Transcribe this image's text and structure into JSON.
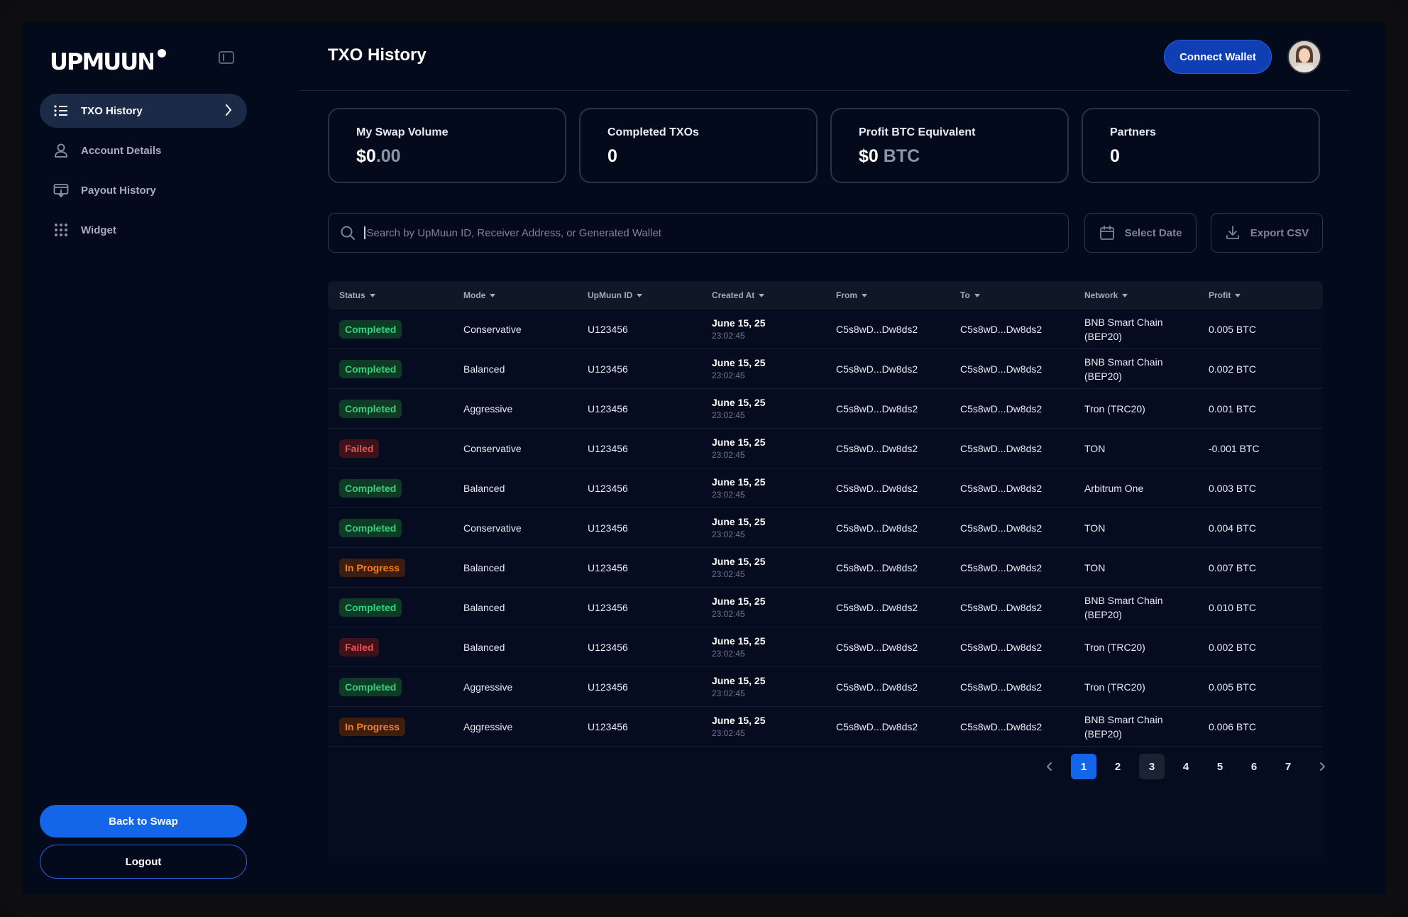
{
  "brand": {
    "logo_text": "UPMUUN"
  },
  "sidebar": {
    "items": [
      {
        "label": "TXO History",
        "icon": "list-icon",
        "active": true
      },
      {
        "label": "Account Details",
        "icon": "user-icon",
        "active": false
      },
      {
        "label": "Payout History",
        "icon": "payout-icon",
        "active": false
      },
      {
        "label": "Widget",
        "icon": "grid-icon",
        "active": false
      }
    ],
    "back_label": "Back to Swap",
    "logout_label": "Logout"
  },
  "header": {
    "title": "TXO History",
    "connect_label": "Connect Wallet"
  },
  "stats": [
    {
      "label": "My Swap Volume",
      "value_main": "$0",
      "value_dim": ".00"
    },
    {
      "label": "Completed TXOs",
      "value_main": "0",
      "value_dim": ""
    },
    {
      "label": "Profit BTC Equivalent",
      "value_main": "$0",
      "value_dim": " BTC"
    },
    {
      "label": "Partners",
      "value_main": "0",
      "value_dim": ""
    }
  ],
  "toolbar": {
    "search_placeholder": "Search by UpMuun ID, Receiver Address, or Generated Wallet",
    "date_label": "Select Date",
    "export_label": "Export CSV"
  },
  "table": {
    "columns": [
      "Status",
      "Mode",
      "UpMuun ID",
      "Created At",
      "From",
      "To",
      "Network",
      "Profit"
    ],
    "rows": [
      {
        "status": "Completed",
        "kind": "completed",
        "mode": "Conservative",
        "id": "U123456",
        "date": "June 15, 25",
        "time": "23:02:45",
        "from": "C5s8wD...Dw8ds2",
        "to": "C5s8wD...Dw8ds2",
        "network": "BNB Smart Chain (BEP20)",
        "profit": "0.005 BTC"
      },
      {
        "status": "Completed",
        "kind": "completed",
        "mode": "Balanced",
        "id": "U123456",
        "date": "June 15, 25",
        "time": "23:02:45",
        "from": "C5s8wD...Dw8ds2",
        "to": "C5s8wD...Dw8ds2",
        "network": "BNB Smart Chain (BEP20)",
        "profit": "0.002 BTC"
      },
      {
        "status": "Completed",
        "kind": "completed",
        "mode": "Aggressive",
        "id": "U123456",
        "date": "June 15, 25",
        "time": "23:02:45",
        "from": "C5s8wD...Dw8ds2",
        "to": "C5s8wD...Dw8ds2",
        "network": "Tron (TRC20)",
        "profit": "0.001 BTC"
      },
      {
        "status": "Failed",
        "kind": "failed",
        "mode": "Conservative",
        "id": "U123456",
        "date": "June 15, 25",
        "time": "23:02:45",
        "from": "C5s8wD...Dw8ds2",
        "to": "C5s8wD...Dw8ds2",
        "network": "TON",
        "profit": "-0.001 BTC"
      },
      {
        "status": "Completed",
        "kind": "completed",
        "mode": "Balanced",
        "id": "U123456",
        "date": "June 15, 25",
        "time": "23:02:45",
        "from": "C5s8wD...Dw8ds2",
        "to": "C5s8wD...Dw8ds2",
        "network": "Arbitrum One",
        "profit": "0.003 BTC"
      },
      {
        "status": "Completed",
        "kind": "completed",
        "mode": "Conservative",
        "id": "U123456",
        "date": "June 15, 25",
        "time": "23:02:45",
        "from": "C5s8wD...Dw8ds2",
        "to": "C5s8wD...Dw8ds2",
        "network": "TON",
        "profit": "0.004 BTC"
      },
      {
        "status": "In Progress",
        "kind": "progress",
        "mode": "Balanced",
        "id": "U123456",
        "date": "June 15, 25",
        "time": "23:02:45",
        "from": "C5s8wD...Dw8ds2",
        "to": "C5s8wD...Dw8ds2",
        "network": "TON",
        "profit": "0.007 BTC"
      },
      {
        "status": "Completed",
        "kind": "completed",
        "mode": "Balanced",
        "id": "U123456",
        "date": "June 15, 25",
        "time": "23:02:45",
        "from": "C5s8wD...Dw8ds2",
        "to": "C5s8wD...Dw8ds2",
        "network": "BNB Smart Chain (BEP20)",
        "profit": "0.010 BTC"
      },
      {
        "status": "Failed",
        "kind": "failed",
        "mode": "Balanced",
        "id": "U123456",
        "date": "June 15, 25",
        "time": "23:02:45",
        "from": "C5s8wD...Dw8ds2",
        "to": "C5s8wD...Dw8ds2",
        "network": "Tron (TRC20)",
        "profit": "0.002 BTC"
      },
      {
        "status": "Completed",
        "kind": "completed",
        "mode": "Aggressive",
        "id": "U123456",
        "date": "June 15, 25",
        "time": "23:02:45",
        "from": "C5s8wD...Dw8ds2",
        "to": "C5s8wD...Dw8ds2",
        "network": "Tron (TRC20)",
        "profit": "0.005 BTC"
      },
      {
        "status": "In Progress",
        "kind": "progress",
        "mode": "Aggressive",
        "id": "U123456",
        "date": "June 15, 25",
        "time": "23:02:45",
        "from": "C5s8wD...Dw8ds2",
        "to": "C5s8wD...Dw8ds2",
        "network": "BNB Smart Chain (BEP20)",
        "profit": "0.006 BTC"
      }
    ]
  },
  "pagination": {
    "pages": [
      "1",
      "2",
      "3",
      "4",
      "5",
      "6",
      "7"
    ],
    "current": "1"
  },
  "colors": {
    "accent": "#1466e8",
    "background": "#030a1c",
    "completed": "#2fd47a",
    "failed": "#f04e5a",
    "in_progress": "#f5801f"
  }
}
